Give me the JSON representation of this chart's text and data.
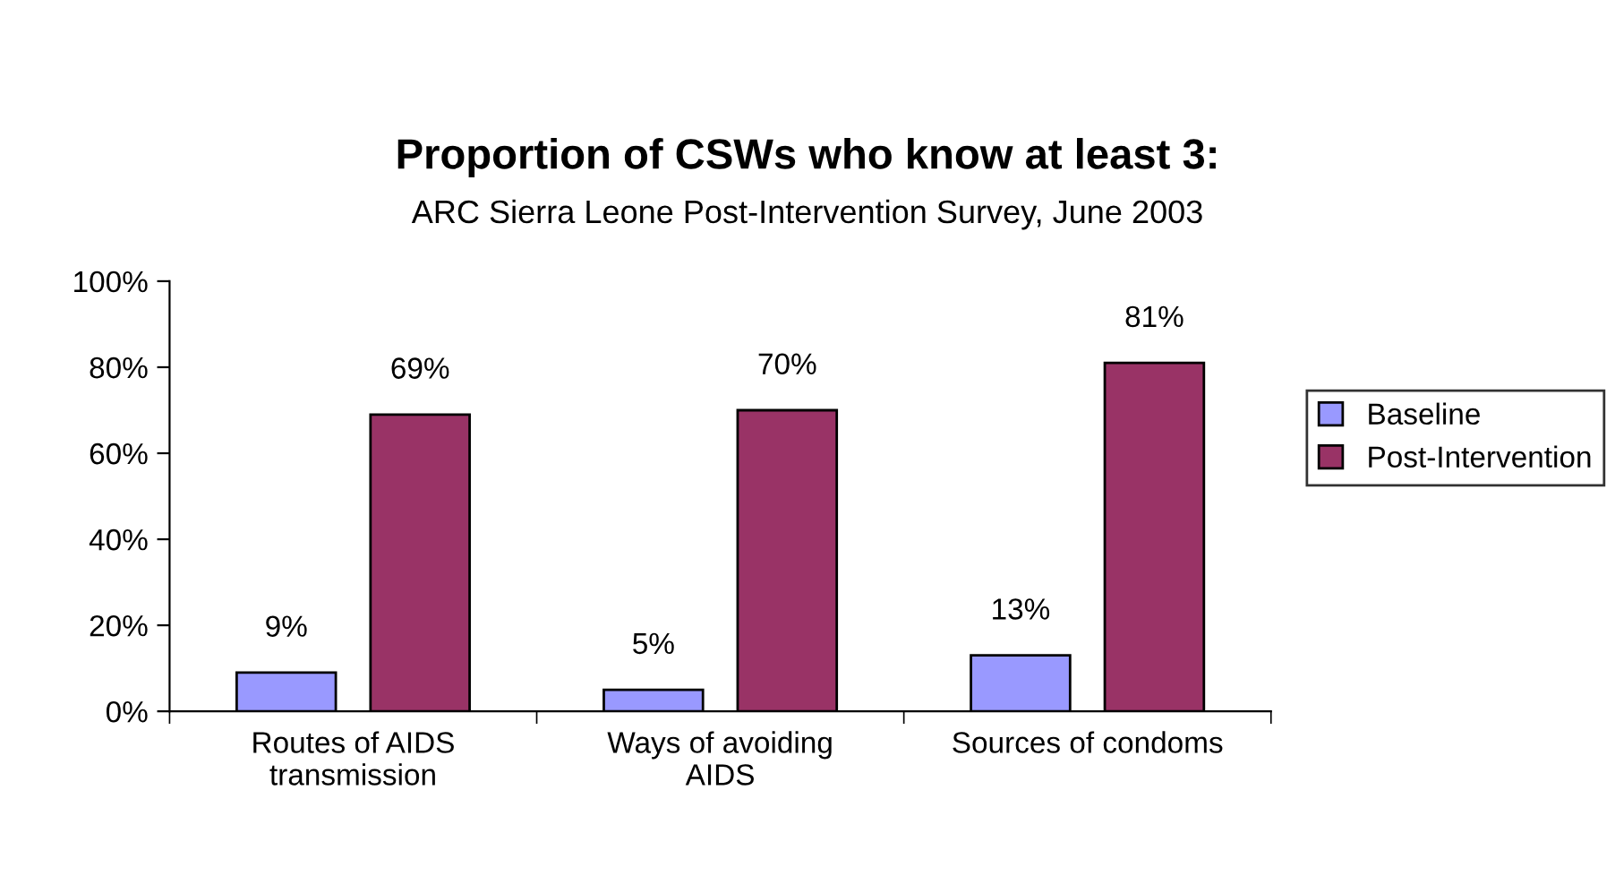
{
  "chart_data": {
    "type": "bar",
    "title": "Proportion of CSWs who know at least 3:",
    "subtitle": "ARC Sierra Leone Post-Intervention Survey, June 2003",
    "categories": [
      "Routes of AIDS\ntransmission",
      "Ways of avoiding\nAIDS",
      "Sources of condoms"
    ],
    "series": [
      {
        "name": "Baseline",
        "color": "#9999ff",
        "values": [
          9,
          5,
          13
        ],
        "value_labels": [
          "9%",
          "5%",
          "13%"
        ]
      },
      {
        "name": "Post-Intervention",
        "color": "#993366",
        "values": [
          69,
          70,
          81
        ],
        "value_labels": [
          "69%",
          "70%",
          "81%"
        ]
      }
    ],
    "ylim": [
      0,
      100
    ],
    "yticks": [
      {
        "value": 0,
        "label": "0%"
      },
      {
        "value": 20,
        "label": "20%"
      },
      {
        "value": 40,
        "label": "40%"
      },
      {
        "value": 60,
        "label": "60%"
      },
      {
        "value": 80,
        "label": "80%"
      },
      {
        "value": 100,
        "label": "100%"
      }
    ],
    "grid": false,
    "legend": "right"
  }
}
